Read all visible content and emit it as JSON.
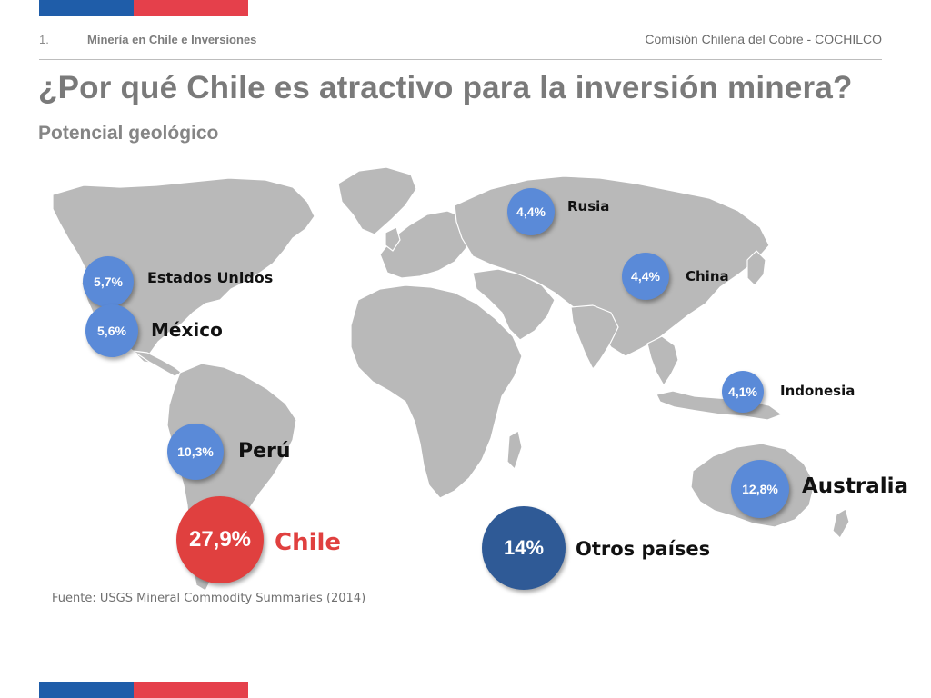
{
  "header": {
    "section_number": "1.",
    "section_title": "Minería en Chile e Inversiones",
    "organization": "Comisión Chilena del Cobre - COCHILCO"
  },
  "title": "¿Por qué Chile es atractivo para la inversión minera?",
  "subtitle": "Potencial geológico",
  "colors": {
    "land": "#b9b9b9",
    "bubble_default": "#5a8ad8",
    "chile": "#e0403f",
    "others": "#2f5a96",
    "title_gray": "#7a7a7a"
  },
  "countries": [
    {
      "id": "usa",
      "country": "Estados Unidos",
      "share": "5,7%"
    },
    {
      "id": "mexico",
      "country": "México",
      "share": "5,6%"
    },
    {
      "id": "peru",
      "country": "Perú",
      "share": "10,3%"
    },
    {
      "id": "chile",
      "country": "Chile",
      "share": "27,9%"
    },
    {
      "id": "russia",
      "country": "Rusia",
      "share": "4,4%"
    },
    {
      "id": "china",
      "country": "China",
      "share": "4,4%"
    },
    {
      "id": "indonesia",
      "country": "Indonesia",
      "share": "4,1%"
    },
    {
      "id": "australia",
      "country": "Australia",
      "share": "12,8%"
    },
    {
      "id": "others",
      "country": "Otros países",
      "share": "14%"
    }
  ],
  "source": "Fuente: USGS Mineral Commodity Summaries (2014)"
}
